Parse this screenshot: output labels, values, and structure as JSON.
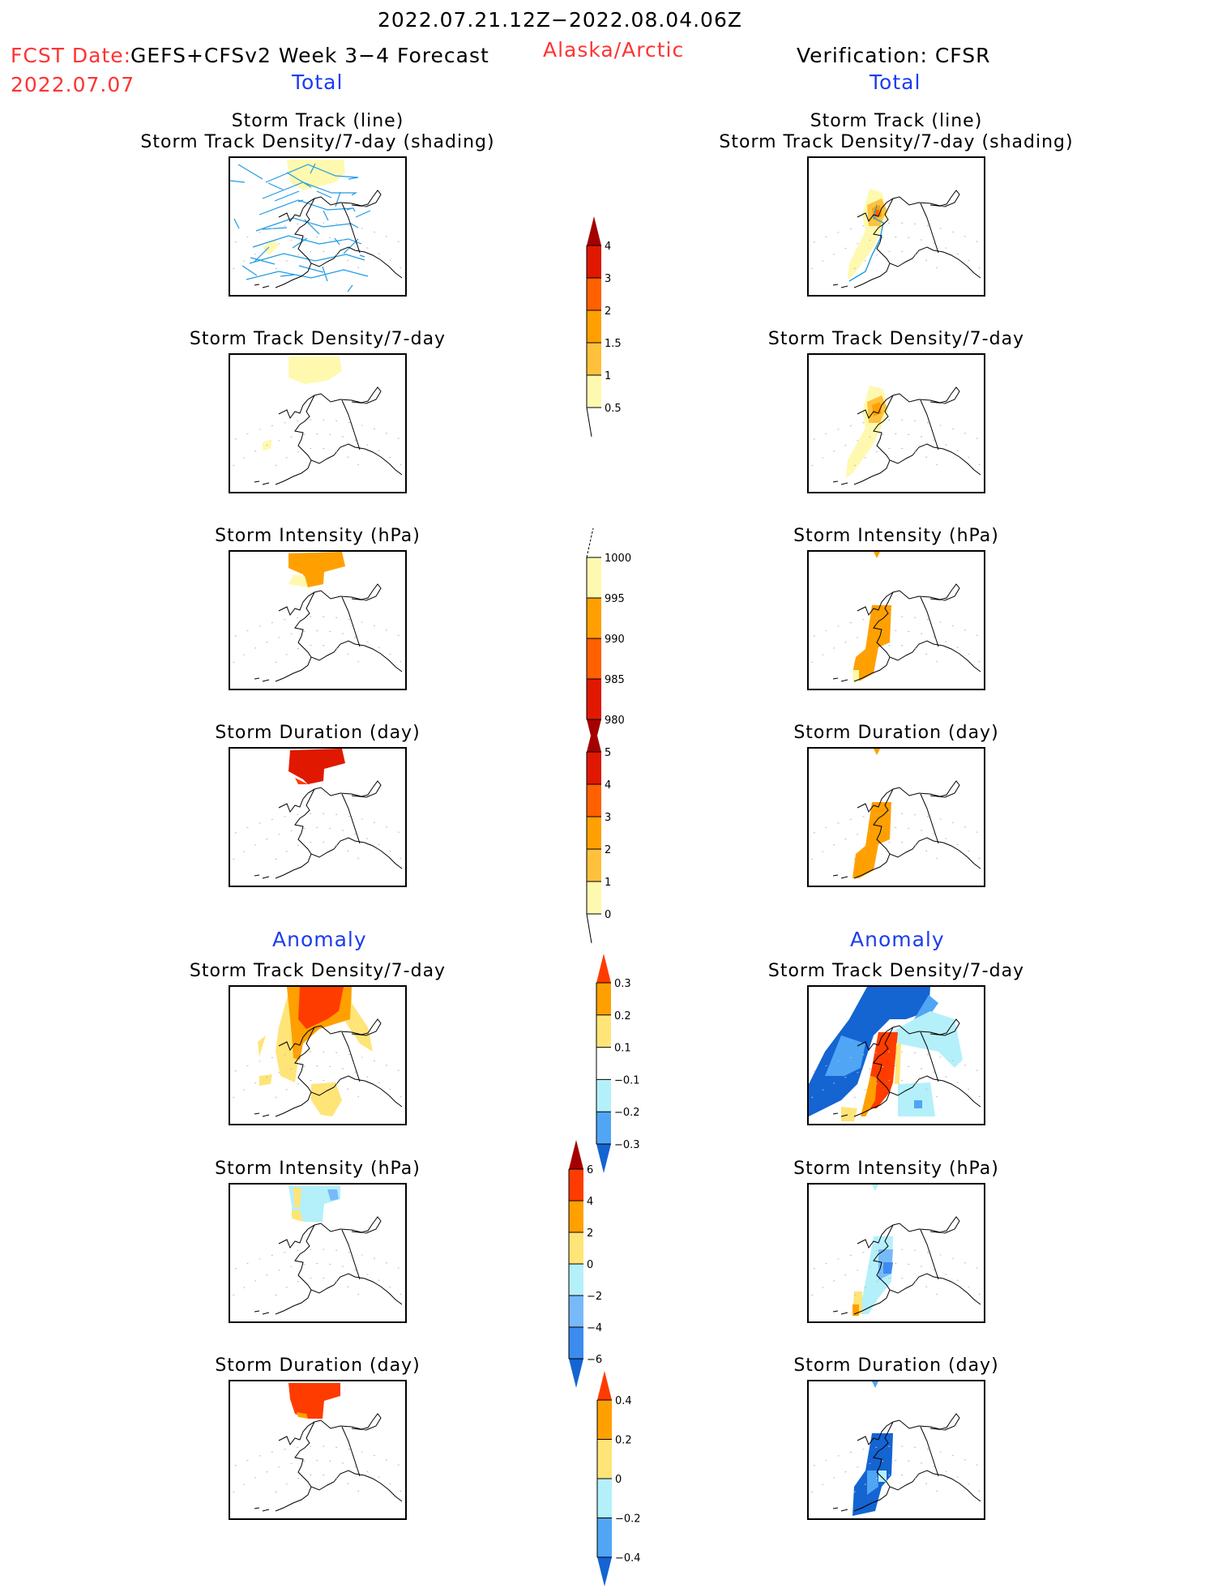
{
  "header": {
    "period": "2022.07.21.12Z−2022.08.04.06Z",
    "fcst_label": "FCST Date:",
    "fcst_date": "2022.07.07",
    "model": "GEFS+CFSv2 Week 3−4 Forecast",
    "region": "Alaska/Arctic",
    "verification": "Verification: CFSR",
    "left_section": "Total",
    "right_section": "Total",
    "left_anomaly": "Anomaly",
    "right_anomaly": "Anomaly"
  },
  "colors": {
    "title_red": "#ff3333",
    "section_blue": "#1c3cf0",
    "track_line": "#1e9be6"
  },
  "chart_data": [
    {
      "type": "heatmap",
      "id": "fcst-track",
      "column": "forecast",
      "title": [
        "Storm Track (line)",
        "Storm Track Density/7-day (shading)"
      ],
      "colorbar": "density"
    },
    {
      "type": "heatmap",
      "id": "fcst-density",
      "column": "forecast",
      "title": [
        "Storm Track Density/7-day"
      ],
      "colorbar": "density"
    },
    {
      "type": "heatmap",
      "id": "fcst-intensity",
      "column": "forecast",
      "title": [
        "Storm Intensity (hPa)"
      ],
      "colorbar": "intensity"
    },
    {
      "type": "heatmap",
      "id": "fcst-duration",
      "column": "forecast",
      "title": [
        "Storm Duration (day)"
      ],
      "colorbar": "duration"
    },
    {
      "type": "heatmap",
      "id": "obs-track",
      "column": "verification",
      "title": [
        "Storm Track (line)",
        "Storm Track Density/7-day (shading)"
      ],
      "colorbar": "density"
    },
    {
      "type": "heatmap",
      "id": "obs-density",
      "column": "verification",
      "title": [
        "Storm Track Density/7-day"
      ],
      "colorbar": "density"
    },
    {
      "type": "heatmap",
      "id": "obs-intensity",
      "column": "verification",
      "title": [
        "Storm Intensity (hPa)"
      ],
      "colorbar": "intensity"
    },
    {
      "type": "heatmap",
      "id": "obs-duration",
      "column": "verification",
      "title": [
        "Storm Duration (day)"
      ],
      "colorbar": "duration"
    },
    {
      "type": "heatmap",
      "id": "fcst-anom-density",
      "column": "forecast",
      "title": [
        "Storm Track Density/7-day"
      ],
      "colorbar": "anom_density"
    },
    {
      "type": "heatmap",
      "id": "fcst-anom-intensity",
      "column": "forecast",
      "title": [
        "Storm Intensity (hPa)"
      ],
      "colorbar": "anom_intensity"
    },
    {
      "type": "heatmap",
      "id": "fcst-anom-duration",
      "column": "forecast",
      "title": [
        "Storm Duration (day)"
      ],
      "colorbar": "anom_duration"
    },
    {
      "type": "heatmap",
      "id": "obs-anom-density",
      "column": "verification",
      "title": [
        "Storm Track Density/7-day"
      ],
      "colorbar": "anom_density"
    },
    {
      "type": "heatmap",
      "id": "obs-anom-intensity",
      "column": "verification",
      "title": [
        "Storm Intensity (hPa)"
      ],
      "colorbar": "anom_intensity"
    },
    {
      "type": "heatmap",
      "id": "obs-anom-duration",
      "column": "verification",
      "title": [
        "Storm Duration (day)"
      ],
      "colorbar": "anom_duration"
    }
  ],
  "colorbars": {
    "density": {
      "ticks": [
        "0.5",
        "1",
        "1.5",
        "2",
        "3",
        "4"
      ],
      "colors": [
        "#fff9b0",
        "#ffc13c",
        "#ffa000",
        "#ff6000",
        "#e11800",
        "#a50000"
      ],
      "arrow": "top",
      "tail": "bottom"
    },
    "intensity": {
      "ticks": [
        "1000",
        "995",
        "990",
        "985",
        "980"
      ],
      "colors": [
        "#fff9b0",
        "#ffa000",
        "#ff6000",
        "#e11800",
        "#a50000"
      ],
      "arrow": "bottom",
      "tail": "top"
    },
    "duration": {
      "ticks": [
        "0",
        "1",
        "2",
        "3",
        "4",
        "5"
      ],
      "colors": [
        "#fff9b0",
        "#ffc13c",
        "#ffa000",
        "#ff6000",
        "#e11800",
        "#a50000"
      ],
      "arrow": "top",
      "tail": "bottom"
    },
    "anom_density": {
      "ticks": [
        "0.3",
        "0.2",
        "0.1",
        "−0.1",
        "−0.2",
        "−0.3"
      ],
      "colors": [
        "#ff3c00",
        "#ffa000",
        "#ffe478",
        "#ffffff",
        "#b4f0fa",
        "#50a5f5",
        "#1464d2"
      ]
    },
    "anom_intensity": {
      "ticks": [
        "6",
        "4",
        "2",
        "0",
        "−2",
        "−4",
        "−6"
      ],
      "colors": [
        "#a50000",
        "#ff3c00",
        "#ffa000",
        "#ffe478",
        "#b4f0fa",
        "#78b9fa",
        "#3c8cf0",
        "#1464d2"
      ]
    },
    "anom_duration": {
      "ticks": [
        "0.4",
        "0.2",
        "0",
        "−0.2",
        "−0.4"
      ],
      "colors": [
        "#ff3c00",
        "#ffa000",
        "#ffe478",
        "#b4f0fa",
        "#50a5f5",
        "#1464d2"
      ]
    }
  }
}
